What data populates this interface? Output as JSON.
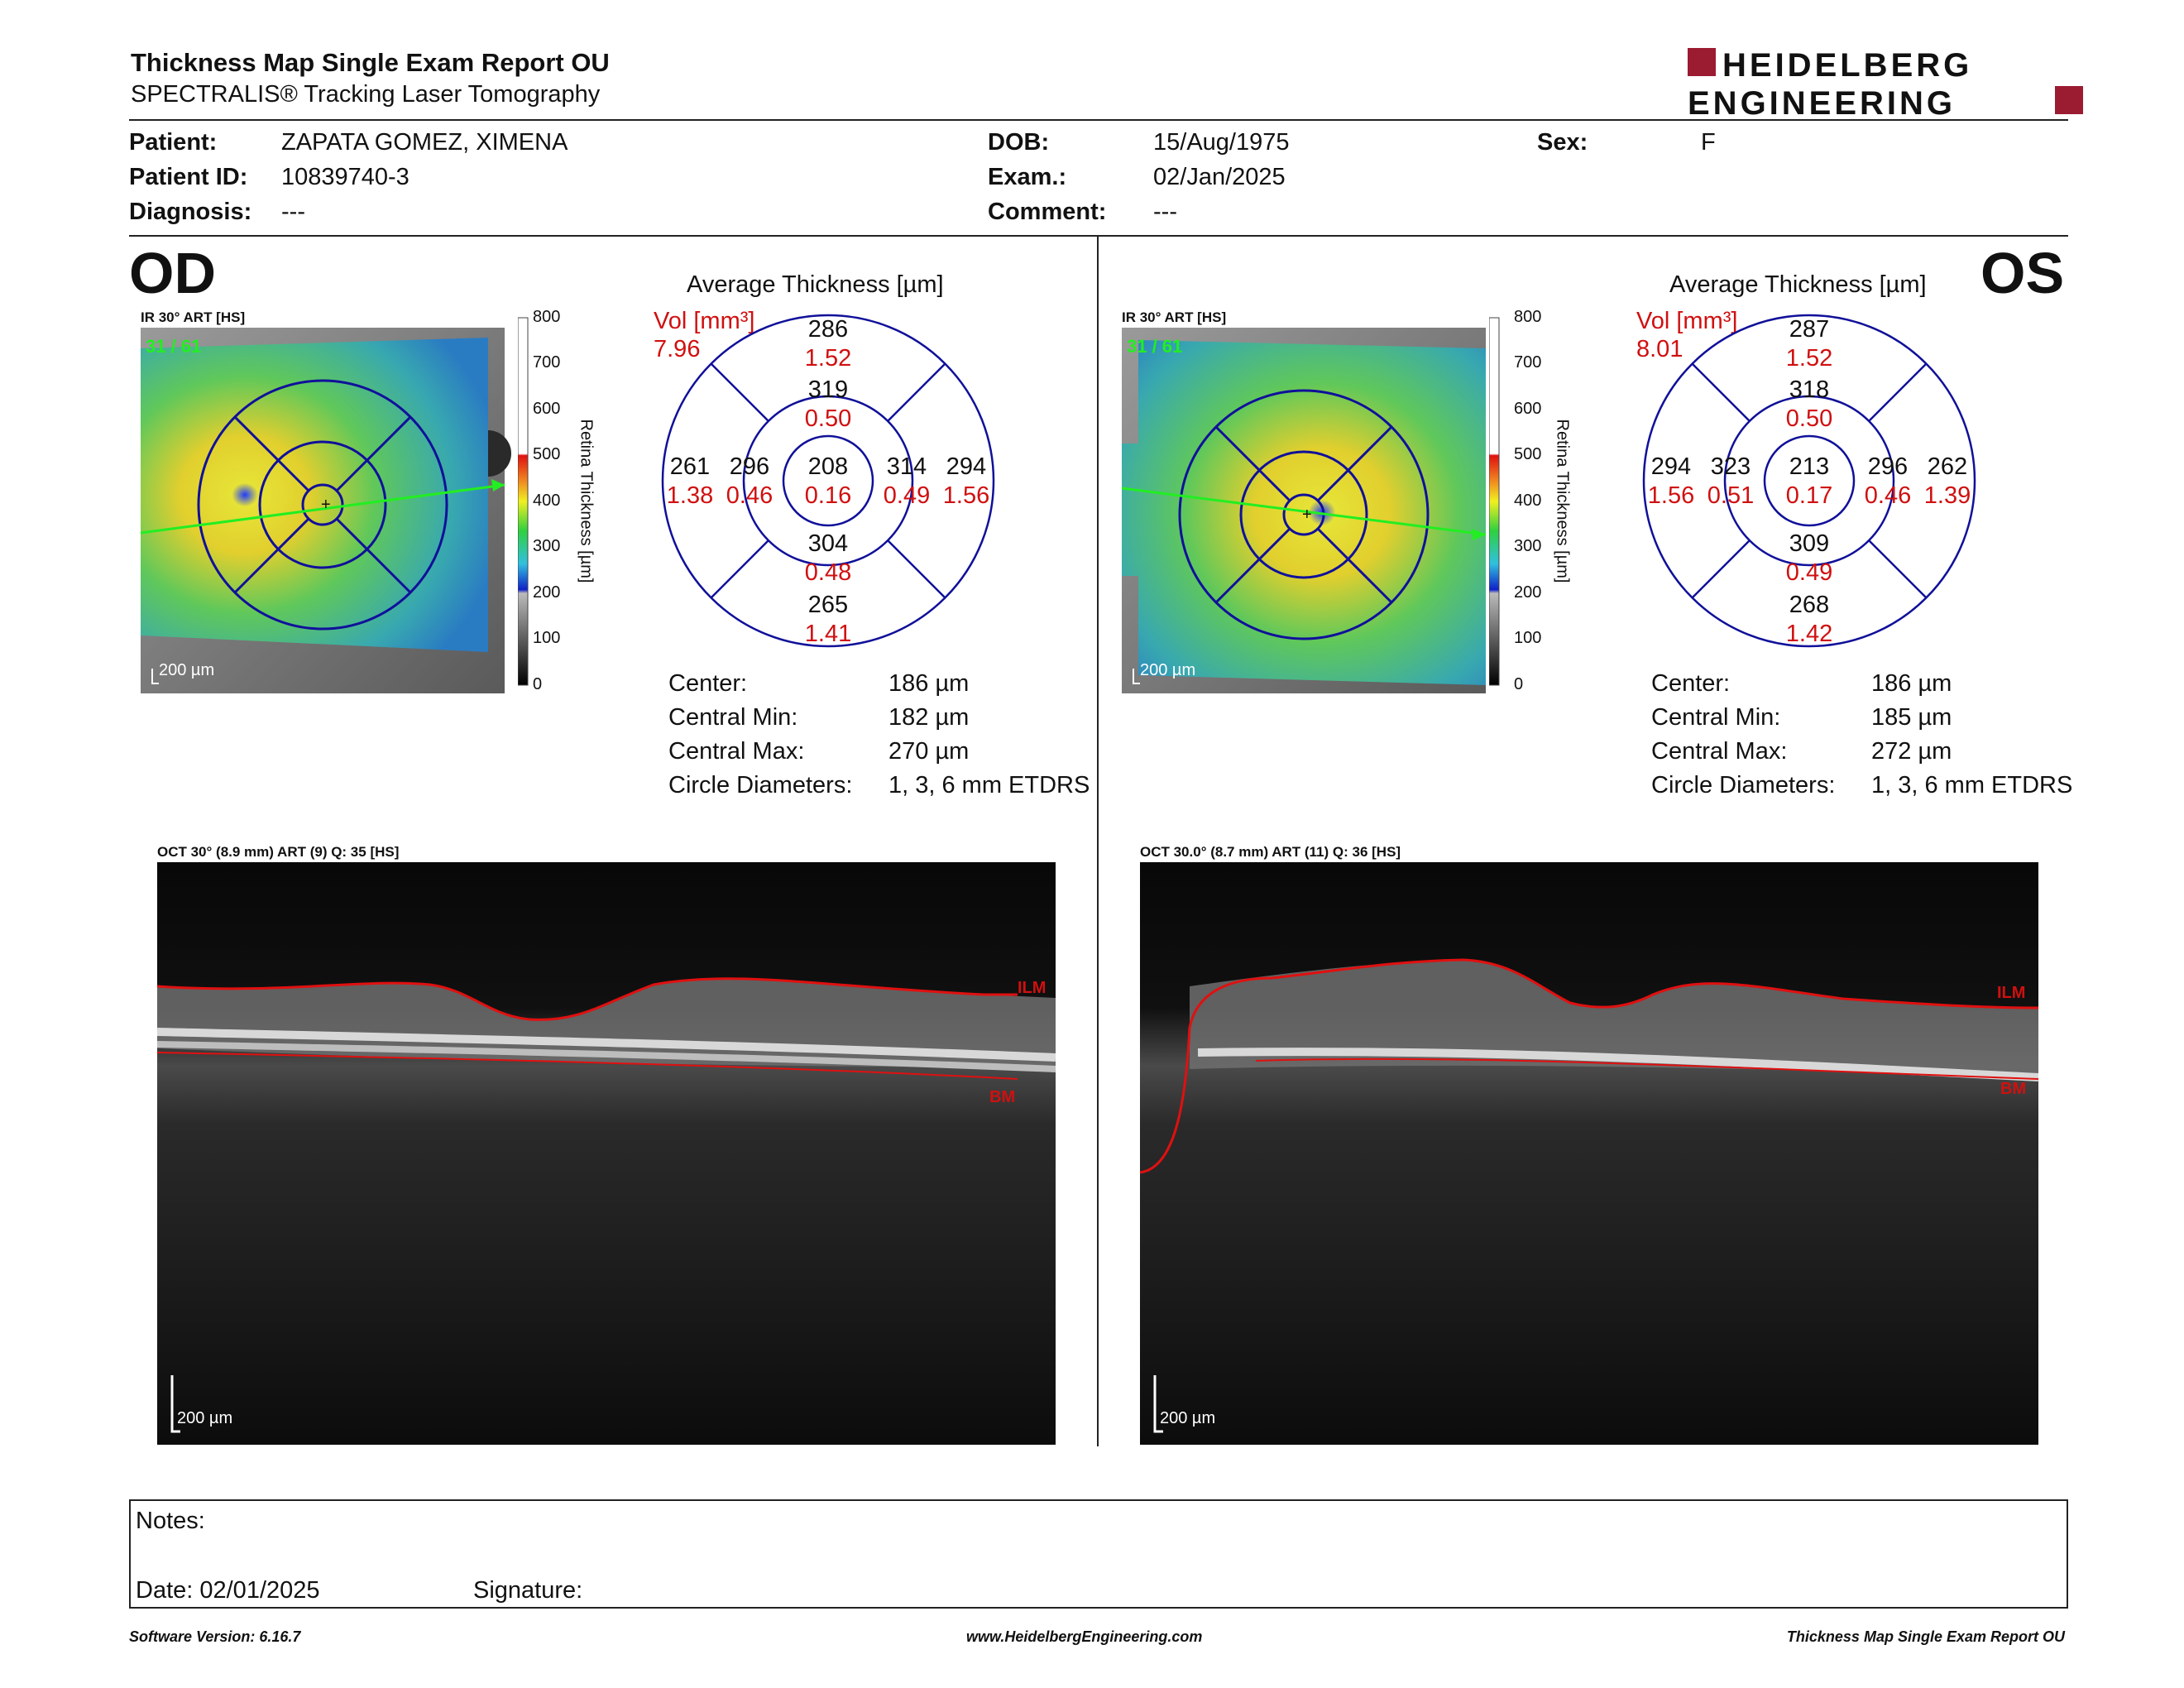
{
  "header": {
    "title": "Thickness Map Single Exam Report OU",
    "subtitle": "SPECTRALIS® Tracking Laser Tomography",
    "logo_line1": "HEIDELBERG",
    "logo_line2": "ENGINEERING"
  },
  "patient": {
    "patient_label": "Patient:",
    "patient_value": "ZAPATA GOMEZ, XIMENA",
    "id_label": "Patient ID:",
    "id_value": "10839740-3",
    "diagnosis_label": "Diagnosis:",
    "diagnosis_value": "---",
    "dob_label": "DOB:",
    "dob_value": "15/Aug/1975",
    "exam_label": "Exam.:",
    "exam_value": "02/Jan/2025",
    "comment_label": "Comment:",
    "comment_value": "---",
    "sex_label": "Sex:",
    "sex_value": "F"
  },
  "od": {
    "eye": "OD",
    "ir_label": "IR 30° ART [HS]",
    "frames": "31 / 61",
    "scale": "200 µm",
    "colorbar_ticks": [
      "800",
      "700",
      "600",
      "500",
      "400",
      "300",
      "200",
      "100",
      "0"
    ],
    "colorbar_title": "Retina Thickness [µm]",
    "avg_title": "Average Thickness [µm]",
    "vol_label": "Vol [mm³]",
    "vol_total": "7.96",
    "center": {
      "thk": "208",
      "vol": "0.16"
    },
    "inner": {
      "sup": {
        "thk": "319",
        "vol": "0.50"
      },
      "inf": {
        "thk": "304",
        "vol": "0.48"
      },
      "temp": {
        "thk": "314",
        "vol": "0.49"
      },
      "nasal": {
        "thk": "296",
        "vol": "0.46"
      }
    },
    "outer": {
      "sup": {
        "thk": "286",
        "vol": "1.52"
      },
      "inf": {
        "thk": "265",
        "vol": "1.41"
      },
      "temp": {
        "thk": "294",
        "vol": "1.56"
      },
      "nasal": {
        "thk": "261",
        "vol": "1.38"
      }
    },
    "stats": {
      "center_label": "Center:",
      "center_val": "186 µm",
      "min_label": "Central Min:",
      "min_val": "182 µm",
      "max_label": "Central Max:",
      "max_val": "270 µm",
      "diam_label": "Circle Diameters:",
      "diam_val": "1, 3, 6 mm ETDRS"
    },
    "oct_label": "OCT 30° (8.9 mm) ART (9) Q: 35 [HS]",
    "oct_scale": "200 µm",
    "ilm": "ILM",
    "bm": "BM"
  },
  "os": {
    "eye": "OS",
    "ir_label": "IR 30° ART [HS]",
    "frames": "31 / 61",
    "scale": "200 µm",
    "colorbar_ticks": [
      "800",
      "700",
      "600",
      "500",
      "400",
      "300",
      "200",
      "100",
      "0"
    ],
    "colorbar_title": "Retina Thickness [µm]",
    "avg_title": "Average Thickness [µm]",
    "vol_label": "Vol [mm³]",
    "vol_total": "8.01",
    "center": {
      "thk": "213",
      "vol": "0.17"
    },
    "inner": {
      "sup": {
        "thk": "318",
        "vol": "0.50"
      },
      "inf": {
        "thk": "309",
        "vol": "0.49"
      },
      "temp": {
        "thk": "323",
        "vol": "0.51"
      },
      "nasal": {
        "thk": "296",
        "vol": "0.46"
      }
    },
    "outer": {
      "sup": {
        "thk": "287",
        "vol": "1.52"
      },
      "inf": {
        "thk": "268",
        "vol": "1.42"
      },
      "temp": {
        "thk": "294",
        "vol": "1.56"
      },
      "nasal": {
        "thk": "262",
        "vol": "1.39"
      }
    },
    "stats": {
      "center_label": "Center:",
      "center_val": "186 µm",
      "min_label": "Central Min:",
      "min_val": "185 µm",
      "max_label": "Central Max:",
      "max_val": "272 µm",
      "diam_label": "Circle Diameters:",
      "diam_val": "1, 3, 6 mm ETDRS"
    },
    "oct_label": "OCT 30.0° (8.7 mm) ART (11) Q: 36 [HS]",
    "oct_scale": "200 µm",
    "ilm": "ILM",
    "bm": "BM"
  },
  "notes": {
    "notes_label": "Notes:",
    "date_label": "Date: 02/01/2025",
    "signature_label": "Signature:"
  },
  "footer": {
    "software": "Software Version: 6.16.7",
    "website": "www.HeidelbergEngineering.com",
    "report": "Thickness Map Single Exam Report OU"
  },
  "colors": {
    "volume_red": "#d01010",
    "etdrs_blue": "#1a1aa8",
    "logo_red": "#9b1b30",
    "scan_green": "#22ee22"
  }
}
